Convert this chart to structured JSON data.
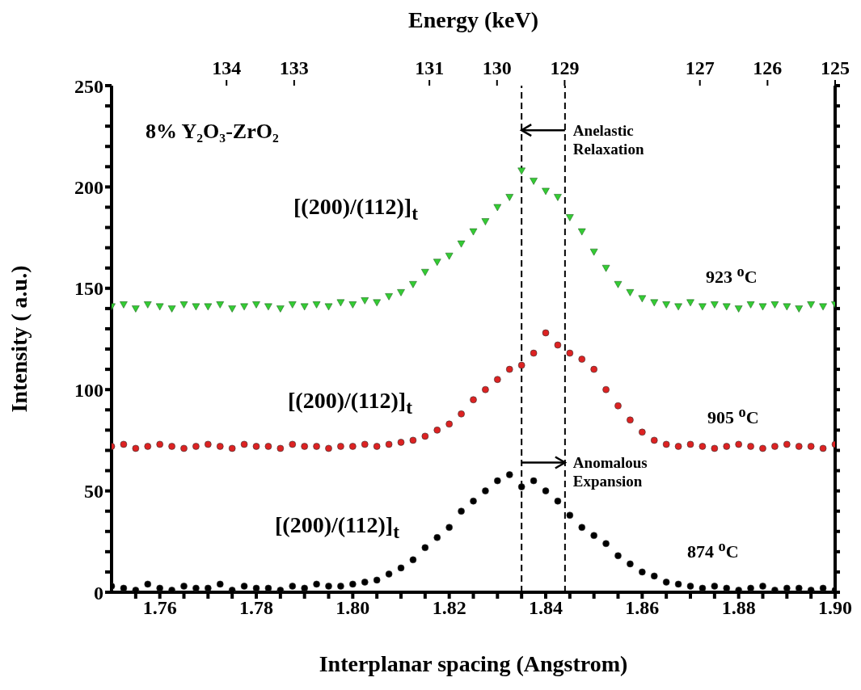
{
  "chart_data": {
    "type": "scatter",
    "xlabel": "Interplanar spacing (Angstrom)",
    "ylabel": "Intensity ( a.u.)",
    "x2label": "Energy (keV)",
    "xlim": [
      1.75,
      1.9
    ],
    "ylim": [
      0,
      250
    ],
    "xticks": [
      {
        "value": 1.755,
        "label": null
      },
      1.76,
      {
        "value": 1.765,
        "label": null
      },
      {
        "value": 1.77,
        "label": null
      },
      {
        "value": 1.775,
        "label": null
      },
      {
        "value": 1.78,
        "label": "1.78"
      },
      {
        "value": 1.785,
        "label": null
      },
      {
        "value": 1.79,
        "label": null
      },
      {
        "value": 1.795,
        "label": null
      },
      {
        "value": 1.8,
        "label": "1.80"
      },
      {
        "value": 1.805,
        "label": null
      },
      {
        "value": 1.81,
        "label": null
      },
      {
        "value": 1.815,
        "label": null
      },
      1.82,
      {
        "value": 1.825,
        "label": null
      },
      {
        "value": 1.83,
        "label": null
      },
      {
        "value": 1.835,
        "label": null
      },
      1.84,
      {
        "value": 1.845,
        "label": null
      },
      {
        "value": 1.85,
        "label": null
      },
      {
        "value": 1.855,
        "label": null
      },
      1.86,
      {
        "value": 1.865,
        "label": null
      },
      {
        "value": 1.87,
        "label": null
      },
      {
        "value": 1.875,
        "label": null
      },
      1.88,
      {
        "value": 1.885,
        "label": null
      },
      {
        "value": 1.89,
        "label": null
      },
      {
        "value": 1.895,
        "label": null
      },
      {
        "value": 1.9,
        "label": "1.90"
      }
    ],
    "yticks": [
      0,
      {
        "value": 10,
        "label": null
      },
      {
        "value": 20,
        "label": null
      },
      {
        "value": 30,
        "label": null
      },
      {
        "value": 40,
        "label": null
      },
      50,
      {
        "value": 60,
        "label": null
      },
      {
        "value": 70,
        "label": null
      },
      {
        "value": 80,
        "label": null
      },
      {
        "value": 90,
        "label": null
      },
      100,
      {
        "value": 110,
        "label": null
      },
      {
        "value": 120,
        "label": null
      },
      {
        "value": 130,
        "label": null
      },
      {
        "value": 140,
        "label": null
      },
      150,
      {
        "value": 160,
        "label": null
      },
      {
        "value": 170,
        "label": null
      },
      {
        "value": 180,
        "label": null
      },
      {
        "value": 190,
        "label": null
      },
      200,
      {
        "value": 210,
        "label": null
      },
      {
        "value": 220,
        "label": null
      },
      {
        "value": 230,
        "label": null
      },
      {
        "value": 240,
        "label": null
      },
      250
    ],
    "x2lim": [
      135.7,
      125
    ],
    "x2ticks": [
      134,
      133,
      131,
      130,
      129,
      127,
      126,
      125
    ],
    "x": [
      1.75,
      1.7525,
      1.755,
      1.7575,
      1.76,
      1.7625,
      1.765,
      1.7675,
      1.77,
      1.7725,
      1.775,
      1.7775,
      1.78,
      1.7825,
      1.785,
      1.7875,
      1.79,
      1.7925,
      1.795,
      1.7975,
      1.8,
      1.8025,
      1.805,
      1.8075,
      1.81,
      1.8125,
      1.815,
      1.8175,
      1.82,
      1.8225,
      1.825,
      1.8275,
      1.83,
      1.8325,
      1.835,
      1.8375,
      1.84,
      1.8425,
      1.845,
      1.8475,
      1.85,
      1.8525,
      1.855,
      1.8575,
      1.86,
      1.8625,
      1.865,
      1.8675,
      1.87,
      1.8725,
      1.875,
      1.8775,
      1.88,
      1.8825,
      1.885,
      1.8875,
      1.89,
      1.8925,
      1.895,
      1.8975,
      1.9
    ],
    "series": [
      {
        "color": "#33cc33",
        "marker": "triangle",
        "values": [
          141,
          142,
          140,
          142,
          141,
          140,
          142,
          141,
          141,
          142,
          140,
          141,
          142,
          141,
          140,
          142,
          141,
          142,
          141,
          143,
          142,
          144,
          143,
          146,
          148,
          152,
          158,
          163,
          166,
          172,
          178,
          183,
          190,
          195,
          208,
          203,
          198,
          195,
          185,
          178,
          168,
          160,
          152,
          148,
          145,
          143,
          142,
          141,
          143,
          141,
          142,
          141,
          140,
          142,
          141,
          142,
          141,
          140,
          142,
          141,
          142
        ]
      },
      {
        "color": "#dd2222",
        "marker": "circle",
        "values": [
          72,
          73,
          71,
          72,
          73,
          72,
          71,
          72,
          73,
          72,
          71,
          73,
          72,
          72,
          71,
          73,
          72,
          72,
          71,
          72,
          72,
          73,
          72,
          73,
          74,
          75,
          77,
          80,
          83,
          88,
          95,
          100,
          105,
          110,
          112,
          118,
          128,
          122,
          118,
          115,
          110,
          100,
          92,
          85,
          79,
          75,
          73,
          72,
          73,
          72,
          71,
          72,
          73,
          72,
          71,
          72,
          73,
          72,
          72,
          71,
          73
        ]
      },
      {
        "color": "#000000",
        "marker": "circle",
        "values": [
          3,
          2,
          1,
          4,
          2,
          1,
          3,
          2,
          2,
          4,
          1,
          3,
          2,
          2,
          1,
          3,
          2,
          4,
          3,
          3,
          4,
          5,
          6,
          9,
          12,
          16,
          22,
          27,
          32,
          40,
          45,
          50,
          55,
          58,
          52,
          55,
          50,
          45,
          38,
          32,
          28,
          24,
          18,
          14,
          10,
          8,
          5,
          4,
          3,
          2,
          3,
          2,
          1,
          2,
          3,
          1,
          2,
          2,
          1,
          2,
          1
        ]
      }
    ],
    "ref_lines": [
      {
        "axis": "x",
        "value": 1.835,
        "line_style": "dashed",
        "color": "#000000"
      },
      {
        "axis": "x",
        "value": 1.844,
        "line_style": "dashed",
        "color": "#000000"
      }
    ],
    "annotations": [
      "8% Y₂O₃-ZrO₂",
      "[(200)/(112)]$_{t}$",
      "[(200)/(112)]$_{t}$",
      "[(200)/(112)]$_{t}$",
      "923 $^{o}$C",
      "905 $^{o}$C",
      "874 $^{o}$C",
      {
        "text": "Anelastic\nRelaxation",
        "x": 1.844,
        "y": 228
      },
      {
        "text": "Anomalous\nExpansion",
        "x": 1.844,
        "y": 64
      }
    ]
  }
}
